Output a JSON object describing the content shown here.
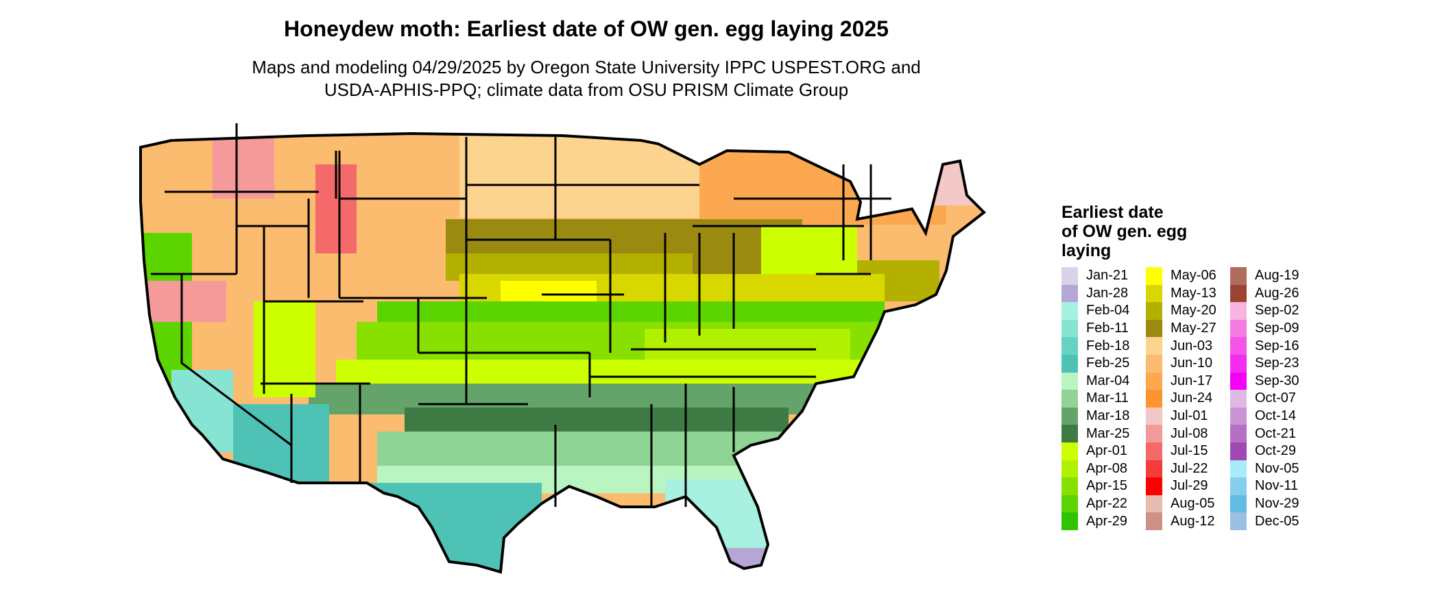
{
  "title": "Honeydew moth: Earliest date of OW gen. egg laying 2025",
  "subtitle_lines": [
    "Maps and modeling 04/29/2025 by Oregon State University IPPC USPEST.ORG and",
    "USDA-APHIS-PPQ; climate data from OSU PRISM Climate Group"
  ],
  "legend": {
    "title_lines": [
      "Earliest date",
      "of OW gen. egg",
      "laying"
    ],
    "items": [
      {
        "label": "Jan-21",
        "color": "#d9d2e9"
      },
      {
        "label": "Jan-28",
        "color": "#b4a7d6"
      },
      {
        "label": "Feb-04",
        "color": "#a8f0e0"
      },
      {
        "label": "Feb-11",
        "color": "#88e4d2"
      },
      {
        "label": "Feb-18",
        "color": "#66d2c2"
      },
      {
        "label": "Feb-25",
        "color": "#4ec2b4"
      },
      {
        "label": "Mar-04",
        "color": "#b8f5c0"
      },
      {
        "label": "Mar-11",
        "color": "#8fd494"
      },
      {
        "label": "Mar-18",
        "color": "#64a46a"
      },
      {
        "label": "Mar-25",
        "color": "#3e7a44"
      },
      {
        "label": "Apr-01",
        "color": "#ccff00"
      },
      {
        "label": "Apr-08",
        "color": "#b0f000"
      },
      {
        "label": "Apr-15",
        "color": "#88e000"
      },
      {
        "label": "Apr-22",
        "color": "#5cd400"
      },
      {
        "label": "Apr-29",
        "color": "#30c400"
      },
      {
        "label": "May-06",
        "color": "#ffff00"
      },
      {
        "label": "May-13",
        "color": "#d8d800"
      },
      {
        "label": "May-20",
        "color": "#b4b000"
      },
      {
        "label": "May-27",
        "color": "#9a8a10"
      },
      {
        "label": "Jun-03",
        "color": "#fcd490"
      },
      {
        "label": "Jun-10",
        "color": "#fcbc70"
      },
      {
        "label": "Jun-17",
        "color": "#fca850"
      },
      {
        "label": "Jun-24",
        "color": "#fc9430"
      },
      {
        "label": "Jul-01",
        "color": "#f5c8c8"
      },
      {
        "label": "Jul-08",
        "color": "#f49a9a"
      },
      {
        "label": "Jul-15",
        "color": "#f46a6a"
      },
      {
        "label": "Jul-22",
        "color": "#f43c3c"
      },
      {
        "label": "Jul-29",
        "color": "#ff0000"
      },
      {
        "label": "Aug-05",
        "color": "#e8bcb0"
      },
      {
        "label": "Aug-12",
        "color": "#cc9088"
      },
      {
        "label": "Aug-19",
        "color": "#b06c5c"
      },
      {
        "label": "Aug-26",
        "color": "#9c4434"
      },
      {
        "label": "Sep-02",
        "color": "#f8b4e0"
      },
      {
        "label": "Sep-09",
        "color": "#f47ce0"
      },
      {
        "label": "Sep-16",
        "color": "#f454e8"
      },
      {
        "label": "Sep-23",
        "color": "#f42cf0"
      },
      {
        "label": "Sep-30",
        "color": "#f400f4"
      },
      {
        "label": "Oct-07",
        "color": "#e0b8e4"
      },
      {
        "label": "Oct-14",
        "color": "#cc94d4"
      },
      {
        "label": "Oct-21",
        "color": "#b470c4"
      },
      {
        "label": "Oct-29",
        "color": "#a048b4"
      },
      {
        "label": "Nov-05",
        "color": "#a8ecfc"
      },
      {
        "label": "Nov-11",
        "color": "#84d0ec"
      },
      {
        "label": "Nov-29",
        "color": "#60bce4"
      },
      {
        "label": "Dec-05",
        "color": "#9cc0e4"
      }
    ]
  }
}
